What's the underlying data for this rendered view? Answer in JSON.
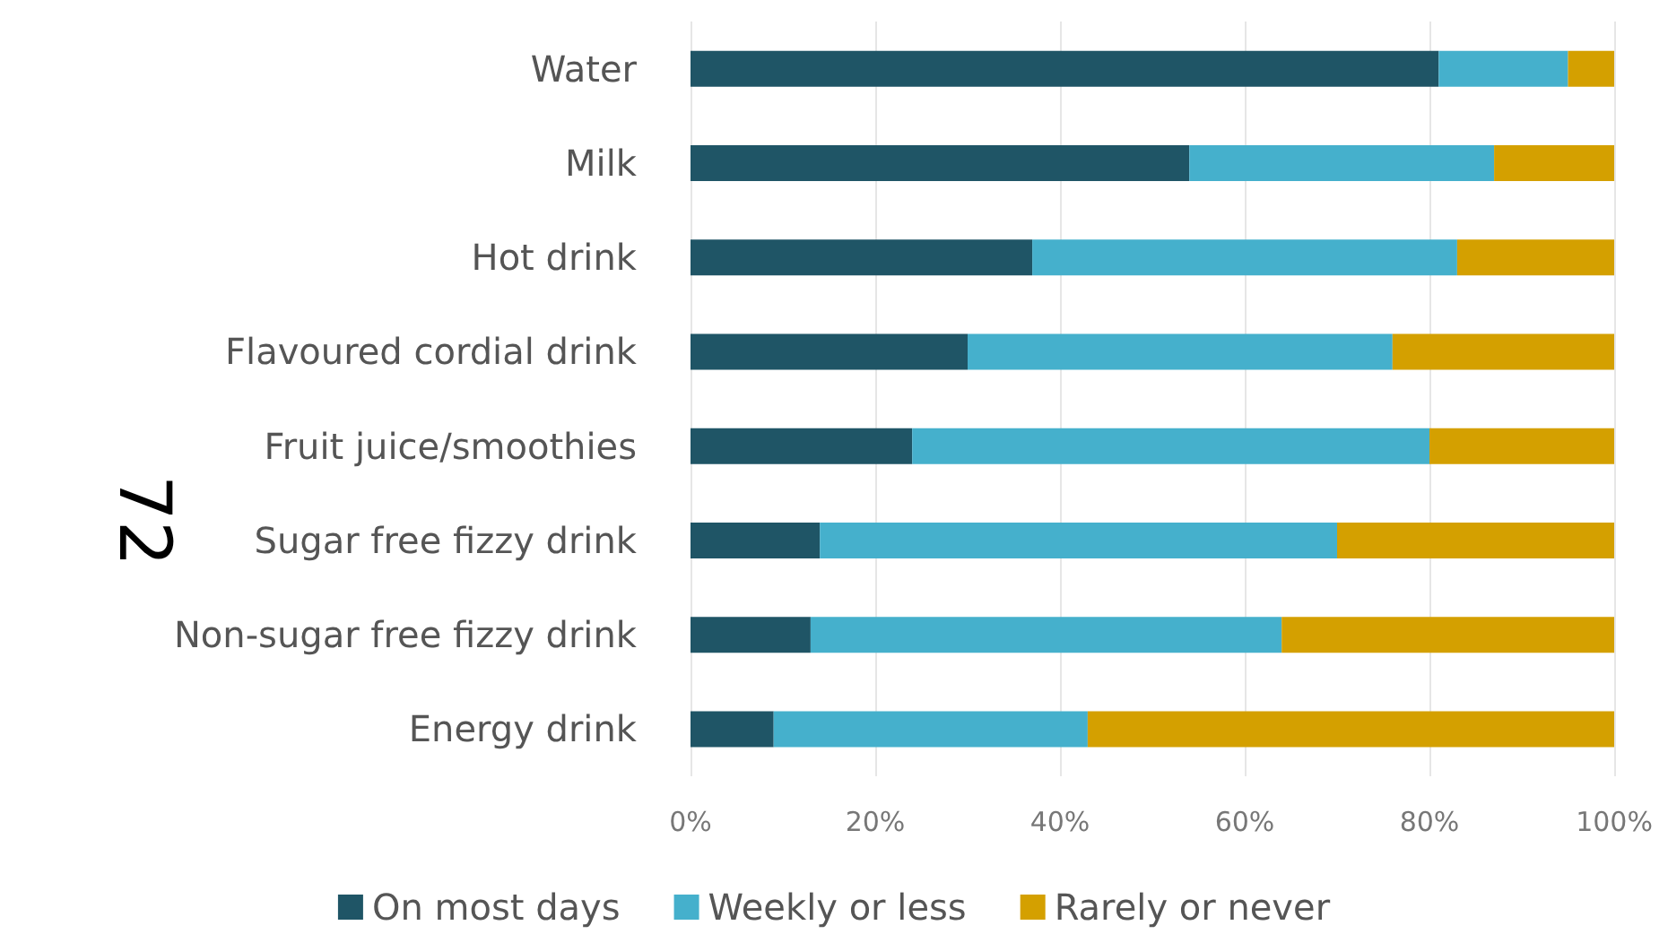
{
  "chart_data": {
    "type": "bar",
    "orientation": "horizontal",
    "stacked": true,
    "categories": [
      "Water",
      "Milk",
      "Hot drink",
      "Flavoured cordial drink",
      "Fruit juice/smoothies",
      "Sugar free fizzy drink",
      "Non-sugar free fizzy drink",
      "Energy drink"
    ],
    "series": [
      {
        "name": "On most days",
        "color": "#1f5566",
        "values": [
          81,
          54,
          37,
          30,
          24,
          14,
          13,
          9
        ]
      },
      {
        "name": "Weekly or less",
        "color": "#45b0cc",
        "values": [
          14,
          33,
          46,
          46,
          56,
          56,
          51,
          34
        ]
      },
      {
        "name": "Rarely or never",
        "color": "#d4a000",
        "values": [
          5,
          13,
          17,
          24,
          20,
          30,
          36,
          57
        ]
      }
    ],
    "xlim": [
      0,
      100
    ],
    "xticks": [
      {
        "value": 0,
        "label": "0%"
      },
      {
        "value": 20,
        "label": "20%"
      },
      {
        "value": 40,
        "label": "40%"
      },
      {
        "value": 60,
        "label": "60%"
      },
      {
        "value": 80,
        "label": "80%"
      },
      {
        "value": 100,
        "label": "100%"
      }
    ],
    "grid": "x",
    "legend": "bottom",
    "annotations": [
      "72"
    ]
  }
}
